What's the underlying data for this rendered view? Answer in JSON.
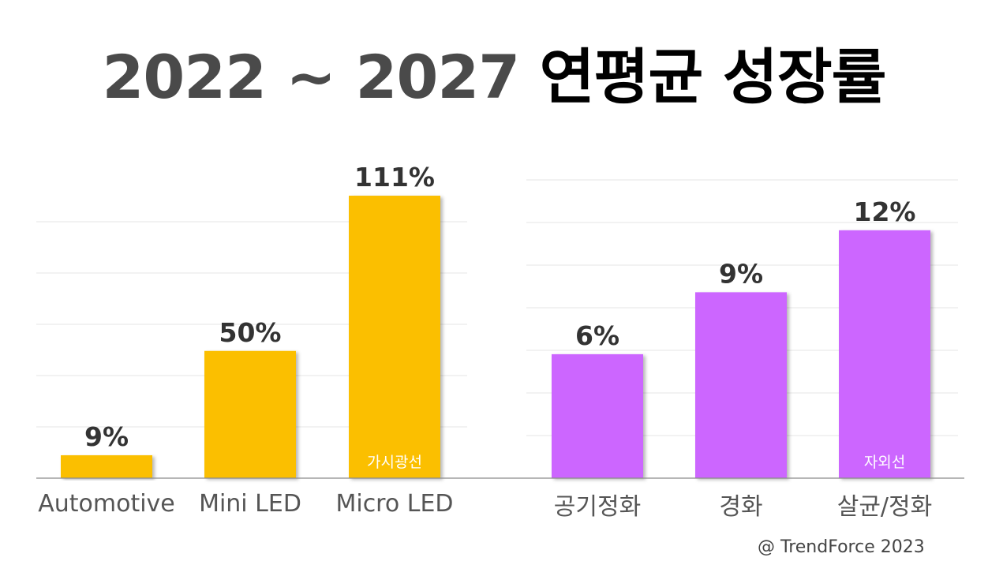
{
  "title": {
    "years": "2022 ~ 2027",
    "text": "연평균 성장률"
  },
  "source": "@ TrendForce 2023",
  "chart_data": [
    {
      "type": "bar",
      "categories": [
        "Automotive",
        "Mini LED",
        "Micro LED"
      ],
      "values": [
        9,
        50,
        111
      ],
      "value_labels": [
        "9%",
        "50%",
        "111%"
      ],
      "bar_annotations": [
        "",
        "",
        "가시광선"
      ],
      "color": "#FBBF00",
      "ylim": [
        0,
        120
      ],
      "grid": true
    },
    {
      "type": "bar",
      "categories": [
        "공기정화",
        "경화",
        "살균/정화"
      ],
      "values": [
        6,
        9,
        12
      ],
      "value_labels": [
        "6%",
        "9%",
        "12%"
      ],
      "bar_annotations": [
        "",
        "",
        "자외선"
      ],
      "color": "#CC66FF",
      "ylim": [
        0,
        14.4
      ],
      "grid": true
    }
  ]
}
